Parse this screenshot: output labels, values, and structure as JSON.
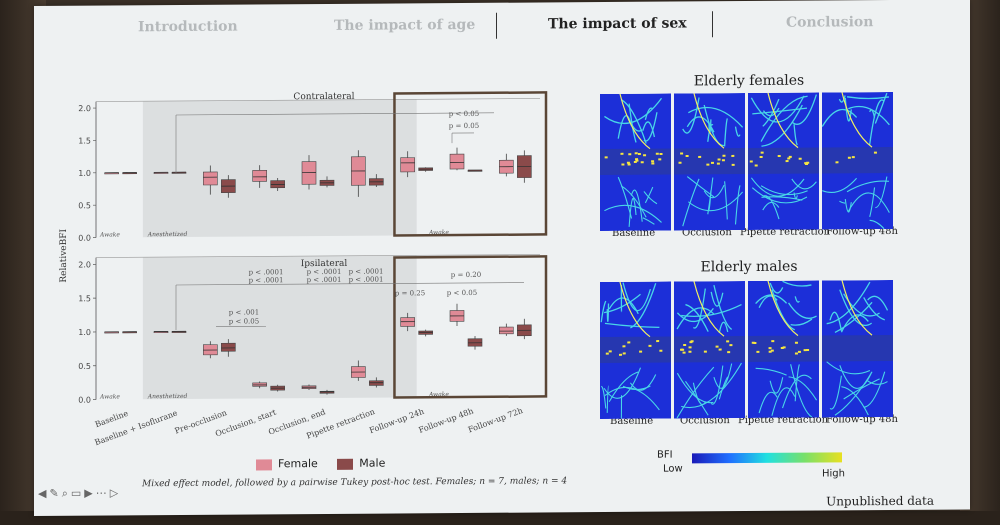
{
  "nav": {
    "items": [
      "Introduction",
      "The impact of age",
      "The impact of sex",
      "Conclusion"
    ],
    "active": "The impact of sex"
  },
  "chart_data": {
    "type": "box",
    "ylabel": "RelativeBFI",
    "categories": [
      "Baseline",
      "Baseline + Isoflurane",
      "Pre-occlusion",
      "Occlusion, start",
      "Occlusion, end",
      "Pipette retraction",
      "Follow-up 24h",
      "Follow-up 48h",
      "Follow-up 72h"
    ],
    "legend": [
      {
        "name": "Female",
        "color": "#e08a96"
      },
      {
        "name": "Male",
        "color": "#8a4a4a"
      }
    ],
    "colors": {
      "female": "#e08a96",
      "male": "#8a4a4a",
      "highlight_box": "#5a4636"
    },
    "panels": [
      {
        "title": "Contralateral",
        "ylim": [
          0,
          2.1
        ],
        "yticks": [
          "0.0",
          "0.5",
          "1.0",
          "1.5",
          "2.0"
        ],
        "phase_labels": [
          "Awake",
          "Anesthetized",
          "Awake"
        ],
        "annotations": [
          "p < 0.05",
          "p = 0.05"
        ],
        "female": [
          {
            "min": 1.0,
            "q1": 1.0,
            "med": 1.0,
            "q3": 1.0,
            "max": 1.0
          },
          {
            "min": 1.0,
            "q1": 1.0,
            "med": 1.0,
            "q3": 1.0,
            "max": 1.0
          },
          {
            "min": 0.65,
            "q1": 0.8,
            "med": 0.92,
            "q3": 1.0,
            "max": 1.1
          },
          {
            "min": 0.75,
            "q1": 0.85,
            "med": 0.92,
            "q3": 1.02,
            "max": 1.1
          },
          {
            "min": 0.72,
            "q1": 0.8,
            "med": 0.98,
            "q3": 1.15,
            "max": 1.25
          },
          {
            "min": 0.6,
            "q1": 0.78,
            "med": 1.0,
            "q3": 1.22,
            "max": 1.32
          },
          {
            "min": 0.9,
            "q1": 0.98,
            "med": 1.12,
            "q3": 1.2,
            "max": 1.3
          },
          {
            "min": 1.0,
            "q1": 1.02,
            "med": 1.12,
            "q3": 1.25,
            "max": 1.35
          },
          {
            "min": 0.9,
            "q1": 0.95,
            "med": 1.05,
            "q3": 1.15,
            "max": 1.25
          }
        ],
        "male": [
          {
            "min": 1.0,
            "q1": 1.0,
            "med": 1.0,
            "q3": 1.0,
            "max": 1.0
          },
          {
            "min": 1.0,
            "q1": 1.0,
            "med": 1.0,
            "q3": 1.0,
            "max": 1.0
          },
          {
            "min": 0.6,
            "q1": 0.68,
            "med": 0.78,
            "q3": 0.88,
            "max": 0.95
          },
          {
            "min": 0.7,
            "q1": 0.75,
            "med": 0.8,
            "q3": 0.86,
            "max": 0.9
          },
          {
            "min": 0.75,
            "q1": 0.78,
            "med": 0.82,
            "q3": 0.86,
            "max": 0.92
          },
          {
            "min": 0.75,
            "q1": 0.78,
            "med": 0.83,
            "q3": 0.88,
            "max": 0.95
          },
          {
            "min": 0.98,
            "q1": 1.0,
            "med": 1.02,
            "q3": 1.04,
            "max": 1.05
          },
          {
            "min": 1.0,
            "q1": 1.0,
            "med": 1.0,
            "q3": 1.0,
            "max": 1.0
          },
          {
            "min": 0.8,
            "q1": 0.88,
            "med": 1.05,
            "q3": 1.22,
            "max": 1.3
          }
        ]
      },
      {
        "title": "Ipsilateral",
        "ylim": [
          0,
          2.1
        ],
        "yticks": [
          "0.0",
          "0.5",
          "1.0",
          "1.5",
          "2.0"
        ],
        "phase_labels": [
          "Awake",
          "Anesthetized",
          "Awake"
        ],
        "annotations": [
          "p < .0001",
          "p < .0001",
          "p < .0001",
          "p < .0001",
          "p < .0001",
          "p < .0001",
          "p < .001",
          "p < 0.05",
          "p = 0.20",
          "p = 0.25",
          "p < 0.05"
        ],
        "female": [
          {
            "min": 1.0,
            "q1": 1.0,
            "med": 1.0,
            "q3": 1.0,
            "max": 1.0
          },
          {
            "min": 1.0,
            "q1": 1.0,
            "med": 1.0,
            "q3": 1.0,
            "max": 1.0
          },
          {
            "min": 0.6,
            "q1": 0.65,
            "med": 0.72,
            "q3": 0.8,
            "max": 0.85
          },
          {
            "min": 0.15,
            "q1": 0.18,
            "med": 0.2,
            "q3": 0.23,
            "max": 0.25
          },
          {
            "min": 0.12,
            "q1": 0.14,
            "med": 0.16,
            "q3": 0.18,
            "max": 0.2
          },
          {
            "min": 0.25,
            "q1": 0.3,
            "med": 0.38,
            "q3": 0.46,
            "max": 0.55
          },
          {
            "min": 0.98,
            "q1": 1.05,
            "med": 1.12,
            "q3": 1.18,
            "max": 1.25
          },
          {
            "min": 1.05,
            "q1": 1.12,
            "med": 1.2,
            "q3": 1.28,
            "max": 1.38
          },
          {
            "min": 0.9,
            "q1": 0.93,
            "med": 0.97,
            "q3": 1.03,
            "max": 1.08
          }
        ],
        "male": [
          {
            "min": 1.0,
            "q1": 1.0,
            "med": 1.0,
            "q3": 1.0,
            "max": 1.0
          },
          {
            "min": 1.0,
            "q1": 1.0,
            "med": 1.0,
            "q3": 1.0,
            "max": 1.0
          },
          {
            "min": 0.62,
            "q1": 0.7,
            "med": 0.75,
            "q3": 0.82,
            "max": 0.88
          },
          {
            "min": 0.1,
            "q1": 0.12,
            "med": 0.15,
            "q3": 0.18,
            "max": 0.2
          },
          {
            "min": 0.05,
            "q1": 0.07,
            "med": 0.09,
            "q3": 0.1,
            "max": 0.12
          },
          {
            "min": 0.15,
            "q1": 0.18,
            "med": 0.22,
            "q3": 0.25,
            "max": 0.3
          },
          {
            "min": 0.9,
            "q1": 0.93,
            "med": 0.96,
            "q3": 0.98,
            "max": 1.0
          },
          {
            "min": 0.7,
            "q1": 0.75,
            "med": 0.8,
            "q3": 0.86,
            "max": 0.9
          },
          {
            "min": 0.85,
            "q1": 0.9,
            "med": 0.98,
            "q3": 1.06,
            "max": 1.15
          }
        ]
      }
    ]
  },
  "legend": {
    "female": "Female",
    "male": "Male"
  },
  "caption": "Mixed effect model, followed by a pairwise Tukey post-hoc test. Females; n = 7, males; n = 4",
  "maps": {
    "females": {
      "title": "Elderly females",
      "captions": [
        "Baseline",
        "Occlusion",
        "Pipette retraction",
        "Follow-up 48h"
      ]
    },
    "males": {
      "title": "Elderly males",
      "captions": [
        "Baseline",
        "Occlusion",
        "Pipette retraction",
        "Follow-up 48h"
      ]
    }
  },
  "bfi": {
    "label": "BFI",
    "low": "Low",
    "high": "High"
  },
  "footer": {
    "unpublished": "Unpublished data",
    "toolbar_icons": [
      "back-icon",
      "pen-icon",
      "zoom-icon",
      "captions-icon",
      "video-icon",
      "more-icon",
      "next-icon"
    ]
  }
}
